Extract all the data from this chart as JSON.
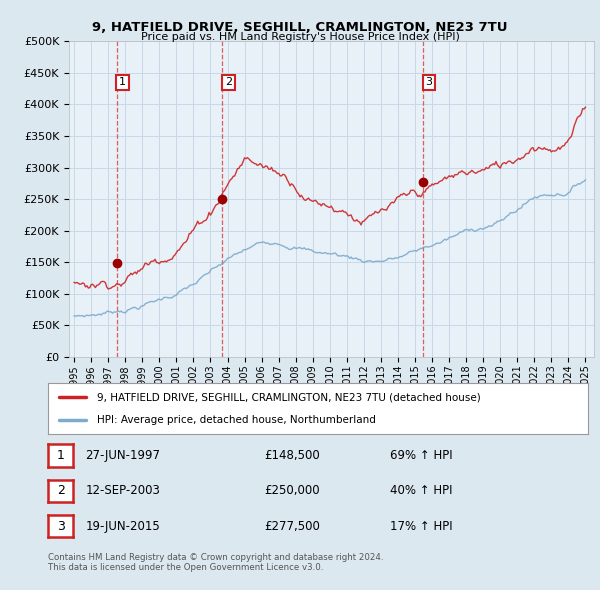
{
  "title": "9, HATFIELD DRIVE, SEGHILL, CRAMLINGTON, NE23 7TU",
  "subtitle": "Price paid vs. HM Land Registry's House Price Index (HPI)",
  "hpi_label": "HPI: Average price, detached house, Northumberland",
  "property_label": "9, HATFIELD DRIVE, SEGHILL, CRAMLINGTON, NE23 7TU (detached house)",
  "footnote1": "Contains HM Land Registry data © Crown copyright and database right 2024.",
  "footnote2": "This data is licensed under the Open Government Licence v3.0.",
  "sales": [
    {
      "num": 1,
      "date": "27-JUN-1997",
      "price": 148500,
      "pct": "69%",
      "dir": "↑",
      "x": 1997.49
    },
    {
      "num": 2,
      "date": "12-SEP-2003",
      "price": 250000,
      "pct": "40%",
      "dir": "↑",
      "x": 2003.7
    },
    {
      "num": 3,
      "date": "19-JUN-2015",
      "price": 277500,
      "pct": "17%",
      "dir": "↑",
      "x": 2015.46
    }
  ],
  "hpi_color": "#7eaacc",
  "property_color": "#cc2222",
  "dot_color": "#990000",
  "vline_color": "#dd4444",
  "grid_color": "#c8d8e8",
  "bg_color": "#dce8f0",
  "plot_bg": "#e8f0f8",
  "ylim": [
    0,
    500000
  ],
  "yticks": [
    0,
    50000,
    100000,
    150000,
    200000,
    250000,
    300000,
    350000,
    400000,
    450000,
    500000
  ],
  "xlim_start": 1994.7,
  "xlim_end": 2025.5
}
